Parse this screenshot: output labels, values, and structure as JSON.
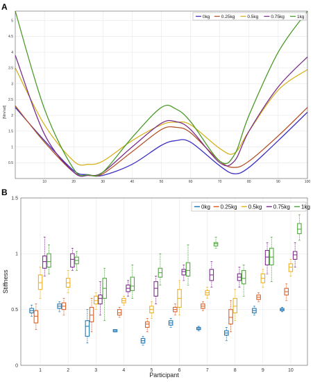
{
  "chart_data": [
    {
      "panel": "A",
      "type": "line",
      "ylabel": "[Nm/rad]",
      "xlim": [
        0,
        100
      ],
      "ylim": [
        0,
        5.3
      ],
      "xticks": [
        "10",
        "20",
        "30",
        "40",
        "50",
        "60",
        "70",
        "80",
        "90",
        "100"
      ],
      "yticks": [
        "0.5",
        "1",
        "1.5",
        "2",
        "2.5",
        "3",
        "3.5",
        "4",
        "4.5",
        "5"
      ],
      "grid": true,
      "legend_position": "top-right",
      "series": [
        {
          "name": "0kg",
          "color": "#3b2fc4",
          "x": [
            0,
            10,
            20,
            25,
            30,
            40,
            50,
            55,
            60,
            70,
            75,
            80,
            90,
            100
          ],
          "y": [
            2.25,
            1.2,
            0.25,
            0.12,
            0.1,
            0.45,
            1.05,
            1.2,
            1.15,
            0.4,
            0.15,
            0.35,
            1.2,
            2.1
          ]
        },
        {
          "name": "0.25kg",
          "color": "#b5542a",
          "x": [
            0,
            10,
            20,
            25,
            30,
            40,
            50,
            55,
            60,
            70,
            75,
            80,
            90,
            100
          ],
          "y": [
            2.3,
            1.15,
            0.2,
            0.1,
            0.15,
            0.85,
            1.55,
            1.62,
            1.45,
            0.55,
            0.35,
            0.55,
            1.35,
            2.25
          ]
        },
        {
          "name": "0.5kg",
          "color": "#d6b21e",
          "x": [
            0,
            10,
            20,
            25,
            30,
            40,
            50,
            55,
            60,
            70,
            75,
            80,
            90,
            100
          ],
          "y": [
            3.5,
            1.7,
            0.55,
            0.45,
            0.55,
            1.2,
            1.7,
            1.78,
            1.7,
            0.95,
            0.8,
            1.5,
            2.8,
            3.45
          ]
        },
        {
          "name": "0.75kg",
          "color": "#7a2d8c",
          "x": [
            0,
            10,
            20,
            25,
            30,
            40,
            50,
            55,
            60,
            70,
            75,
            80,
            90,
            100
          ],
          "y": [
            3.9,
            1.4,
            0.2,
            0.1,
            0.2,
            1.0,
            1.75,
            1.8,
            1.55,
            0.5,
            0.55,
            1.5,
            2.9,
            3.85
          ]
        },
        {
          "name": "1kg",
          "color": "#4a9a28",
          "x": [
            0,
            10,
            20,
            25,
            30,
            40,
            50,
            55,
            60,
            70,
            75,
            80,
            90,
            100
          ],
          "y": [
            5.3,
            2.2,
            0.3,
            0.12,
            0.2,
            1.3,
            2.25,
            2.2,
            1.8,
            0.55,
            0.75,
            2.0,
            4.0,
            5.3
          ]
        }
      ]
    },
    {
      "panel": "B",
      "type": "box",
      "xlabel": "Participant",
      "ylabel": "Stiffness",
      "categories": [
        "1",
        "2",
        "3",
        "4",
        "5",
        "6",
        "7",
        "8",
        "9",
        "10"
      ],
      "ylim": [
        0,
        1.5
      ],
      "yticks": [
        "0",
        "0.5",
        "1",
        "1.5"
      ],
      "grid": true,
      "legend_position": "top-right",
      "series": [
        {
          "name": "0kg",
          "color": "#1f77b4",
          "boxes": [
            {
              "q1": 0.47,
              "median": 0.49,
              "q3": 0.51,
              "min": 0.44,
              "max": 0.54
            },
            {
              "q1": 0.51,
              "median": 0.53,
              "q3": 0.55,
              "min": 0.48,
              "max": 0.57
            },
            {
              "q1": 0.26,
              "median": 0.35,
              "q3": 0.4,
              "min": 0.2,
              "max": 0.5
            },
            {
              "q1": 0.3,
              "median": 0.31,
              "q3": 0.32,
              "min": 0.3,
              "max": 0.32
            },
            {
              "q1": 0.2,
              "median": 0.22,
              "q3": 0.24,
              "min": 0.18,
              "max": 0.26
            },
            {
              "q1": 0.36,
              "median": 0.38,
              "q3": 0.4,
              "min": 0.34,
              "max": 0.42
            },
            {
              "q1": 0.32,
              "median": 0.33,
              "q3": 0.34,
              "min": 0.31,
              "max": 0.35
            },
            {
              "q1": 0.27,
              "median": 0.29,
              "q3": 0.31,
              "min": 0.22,
              "max": 0.34
            },
            {
              "q1": 0.47,
              "median": 0.49,
              "q3": 0.51,
              "min": 0.45,
              "max": 0.53
            },
            {
              "q1": 0.49,
              "median": 0.5,
              "q3": 0.51,
              "min": 0.48,
              "max": 0.52
            }
          ]
        },
        {
          "name": "0.25kg",
          "color": "#d9622b",
          "boxes": [
            {
              "q1": 0.38,
              "median": 0.44,
              "q3": 0.49,
              "min": 0.32,
              "max": 0.55
            },
            {
              "q1": 0.5,
              "median": 0.53,
              "q3": 0.56,
              "min": 0.45,
              "max": 0.6
            },
            {
              "q1": 0.39,
              "median": 0.45,
              "q3": 0.52,
              "min": 0.3,
              "max": 0.6
            },
            {
              "q1": 0.45,
              "median": 0.47,
              "q3": 0.5,
              "min": 0.43,
              "max": 0.52
            },
            {
              "q1": 0.34,
              "median": 0.37,
              "q3": 0.39,
              "min": 0.3,
              "max": 0.42
            },
            {
              "q1": 0.48,
              "median": 0.5,
              "q3": 0.52,
              "min": 0.45,
              "max": 0.55
            },
            {
              "q1": 0.51,
              "median": 0.53,
              "q3": 0.55,
              "min": 0.49,
              "max": 0.57
            },
            {
              "q1": 0.37,
              "median": 0.43,
              "q3": 0.5,
              "min": 0.3,
              "max": 0.58
            },
            {
              "q1": 0.59,
              "median": 0.61,
              "q3": 0.63,
              "min": 0.57,
              "max": 0.65
            },
            {
              "q1": 0.63,
              "median": 0.66,
              "q3": 0.69,
              "min": 0.58,
              "max": 0.73
            }
          ]
        },
        {
          "name": "0.5kg",
          "color": "#edb120",
          "boxes": [
            {
              "q1": 0.68,
              "median": 0.74,
              "q3": 0.81,
              "min": 0.6,
              "max": 0.88
            },
            {
              "q1": 0.7,
              "median": 0.74,
              "q3": 0.78,
              "min": 0.65,
              "max": 0.85
            },
            {
              "q1": 0.55,
              "median": 0.58,
              "q3": 0.62,
              "min": 0.5,
              "max": 0.65
            },
            {
              "q1": 0.56,
              "median": 0.58,
              "q3": 0.6,
              "min": 0.54,
              "max": 0.62
            },
            {
              "q1": 0.47,
              "median": 0.5,
              "q3": 0.53,
              "min": 0.42,
              "max": 0.57
            },
            {
              "q1": 0.52,
              "median": 0.6,
              "q3": 0.68,
              "min": 0.45,
              "max": 0.76
            },
            {
              "q1": 0.63,
              "median": 0.65,
              "q3": 0.67,
              "min": 0.6,
              "max": 0.7
            },
            {
              "q1": 0.47,
              "median": 0.53,
              "q3": 0.6,
              "min": 0.4,
              "max": 0.68
            },
            {
              "q1": 0.74,
              "median": 0.78,
              "q3": 0.82,
              "min": 0.7,
              "max": 0.86
            },
            {
              "q1": 0.84,
              "median": 0.88,
              "q3": 0.91,
              "min": 0.8,
              "max": 0.95
            }
          ]
        },
        {
          "name": "0.75kg",
          "color": "#7e2f8e",
          "boxes": [
            {
              "q1": 0.87,
              "median": 0.93,
              "q3": 0.98,
              "min": 0.8,
              "max": 1.15
            },
            {
              "q1": 0.88,
              "median": 0.95,
              "q3": 1.0,
              "min": 0.85,
              "max": 1.05
            },
            {
              "q1": 0.55,
              "median": 0.6,
              "q3": 0.63,
              "min": 0.45,
              "max": 0.75
            },
            {
              "q1": 0.66,
              "median": 0.69,
              "q3": 0.72,
              "min": 0.62,
              "max": 0.76
            },
            {
              "q1": 0.62,
              "median": 0.69,
              "q3": 0.75,
              "min": 0.55,
              "max": 0.8
            },
            {
              "q1": 0.81,
              "median": 0.84,
              "q3": 0.86,
              "min": 0.76,
              "max": 0.9
            },
            {
              "q1": 0.76,
              "median": 0.81,
              "q3": 0.86,
              "min": 0.7,
              "max": 0.93
            },
            {
              "q1": 0.76,
              "median": 0.79,
              "q3": 0.82,
              "min": 0.7,
              "max": 0.88
            },
            {
              "q1": 0.9,
              "median": 0.97,
              "q3": 1.03,
              "min": 0.82,
              "max": 1.1
            },
            {
              "q1": 0.95,
              "median": 0.99,
              "q3": 1.02,
              "min": 0.88,
              "max": 1.1
            }
          ]
        },
        {
          "name": "1kg",
          "color": "#4fa83d",
          "boxes": [
            {
              "q1": 0.88,
              "median": 0.93,
              "q3": 1.0,
              "min": 0.82,
              "max": 1.08
            },
            {
              "q1": 0.91,
              "median": 0.94,
              "q3": 0.97,
              "min": 0.85,
              "max": 1.02
            },
            {
              "q1": 0.6,
              "median": 0.69,
              "q3": 0.78,
              "min": 0.4,
              "max": 0.87
            },
            {
              "q1": 0.67,
              "median": 0.71,
              "q3": 0.79,
              "min": 0.6,
              "max": 0.9
            },
            {
              "q1": 0.79,
              "median": 0.83,
              "q3": 0.87,
              "min": 0.72,
              "max": 1.0
            },
            {
              "q1": 0.8,
              "median": 0.85,
              "q3": 0.92,
              "min": 0.72,
              "max": 1.08
            },
            {
              "q1": 1.07,
              "median": 1.09,
              "q3": 1.1,
              "min": 1.05,
              "max": 1.15
            },
            {
              "q1": 0.73,
              "median": 0.78,
              "q3": 0.85,
              "min": 0.62,
              "max": 0.9
            },
            {
              "q1": 0.9,
              "median": 0.97,
              "q3": 1.05,
              "min": 0.75,
              "max": 1.15
            },
            {
              "q1": 1.18,
              "median": 1.22,
              "q3": 1.27,
              "min": 1.12,
              "max": 1.35
            }
          ]
        }
      ]
    }
  ],
  "panels": {
    "a_label": "A",
    "b_label": "B"
  }
}
